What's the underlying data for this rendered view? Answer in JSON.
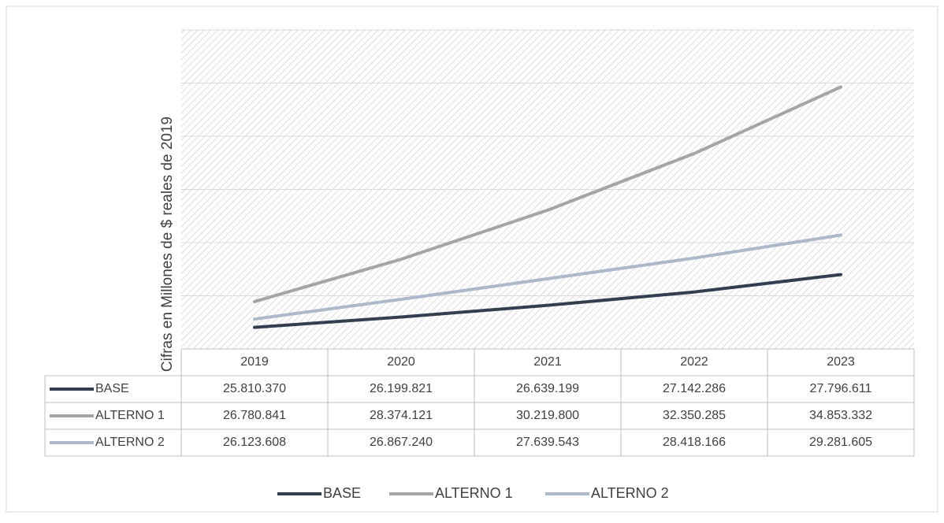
{
  "chart_data": {
    "type": "line",
    "y_label": "Cifras en Millones de $ reales de 2019",
    "categories": [
      "2019",
      "2020",
      "2021",
      "2022",
      "2023"
    ],
    "series": [
      {
        "name": "BASE",
        "color": "#333f50",
        "values": [
          25810370,
          26199821,
          26639199,
          27142286,
          27796611
        ],
        "value_labels": [
          "25.810.370",
          "26.199.821",
          "26.639.199",
          "27.142.286",
          "27.796.611"
        ]
      },
      {
        "name": "ALTERNO 1",
        "color": "#a5a5a5",
        "values": [
          26780841,
          28374121,
          30219800,
          32350285,
          34853332
        ],
        "value_labels": [
          "26.780.841",
          "28.374.121",
          "30.219.800",
          "32.350.285",
          "34.853.332"
        ]
      },
      {
        "name": "ALTERNO 2",
        "color": "#adb9ca",
        "values": [
          26123608,
          26867240,
          27639543,
          28418166,
          29281605
        ],
        "value_labels": [
          "26.123.608",
          "26.867.240",
          "27.639.543",
          "28.418.166",
          "29.281.605"
        ]
      }
    ],
    "ylim": [
      25000000,
      37000000
    ],
    "yticks": [
      25000000,
      27000000,
      29000000,
      31000000,
      33000000,
      35000000,
      37000000
    ],
    "grid": true,
    "legend": "bottom"
  }
}
